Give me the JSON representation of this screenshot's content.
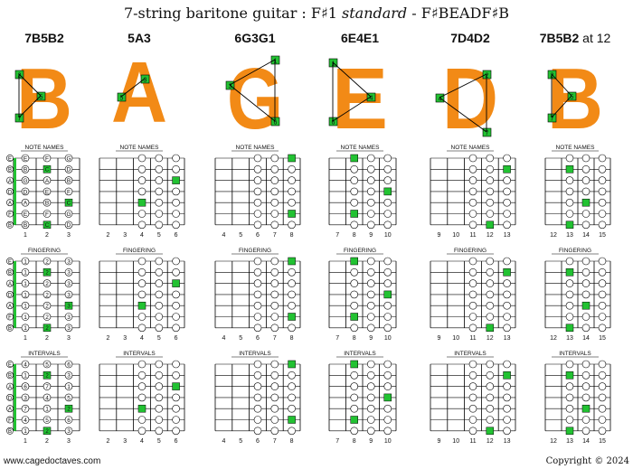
{
  "title": {
    "prefix": "7-string baritone guitar : F♯1 ",
    "italic": "standard",
    "suffix": " - F♯BEADF♯B"
  },
  "shapes": [
    {
      "label": "7B5B2",
      "label_suffix": "",
      "letter": "B",
      "fret_numbers": [
        "1",
        "2",
        "3"
      ]
    },
    {
      "label": "5A3",
      "label_suffix": "",
      "letter": "A",
      "fret_numbers": [
        "2",
        "3",
        "4",
        "5",
        "6"
      ]
    },
    {
      "label": "6G3G1",
      "label_suffix": "",
      "letter": "G",
      "fret_numbers": [
        "4",
        "5",
        "6",
        "7",
        "8"
      ]
    },
    {
      "label": "6E4E1",
      "label_suffix": "",
      "letter": "E",
      "fret_numbers": [
        "7",
        "8",
        "9",
        "10"
      ]
    },
    {
      "label": "7D4D2",
      "label_suffix": "",
      "letter": "D",
      "fret_numbers": [
        "9",
        "10",
        "11",
        "12",
        "13"
      ]
    },
    {
      "label": "7B5B2",
      "label_suffix": " at 12",
      "letter": "B",
      "fret_numbers": [
        "12",
        "13",
        "14",
        "15"
      ]
    }
  ],
  "shape_badges": [
    [
      {
        "t": "2"
      },
      {
        "t": "5"
      },
      {
        "t": "7"
      }
    ],
    [
      {
        "t": "3"
      },
      {
        "t": "5"
      }
    ],
    [
      {
        "t": "1"
      },
      {
        "t": "3"
      },
      {
        "t": "6"
      }
    ],
    [
      {
        "t": "1"
      },
      {
        "t": "4"
      },
      {
        "t": "6"
      }
    ],
    [
      {
        "t": "2"
      },
      {
        "t": "4"
      },
      {
        "t": "7"
      }
    ],
    [
      {
        "t": "2"
      },
      {
        "t": "5"
      },
      {
        "t": "7"
      }
    ]
  ],
  "section_titles": [
    "NOTE NAMES",
    "FINGERING",
    "INTERVALS"
  ],
  "string_names": [
    "E",
    "B",
    "A",
    "D",
    "A",
    "F",
    "B"
  ],
  "note_rows": [
    [
      "E",
      "F",
      "G"
    ],
    [
      "B",
      "C",
      "D"
    ],
    [
      "G",
      "A",
      "B"
    ],
    [
      "D",
      "E",
      "F"
    ],
    [
      "A",
      "B",
      "C"
    ],
    [
      "E",
      "F",
      "G"
    ],
    [
      "B",
      "C",
      "D"
    ]
  ],
  "finger_rows": [
    [
      "1",
      "2",
      "3"
    ],
    [
      "1",
      "2",
      "3"
    ],
    [
      "1",
      "2",
      "3"
    ],
    [
      "1",
      "2",
      "3"
    ],
    [
      "1",
      "2",
      "3"
    ],
    [
      "1",
      "2",
      "3"
    ],
    [
      "1",
      "2",
      "3"
    ]
  ],
  "interval_rows": [
    [
      "4",
      "5",
      "6"
    ],
    [
      "1",
      "2",
      "3"
    ],
    [
      "6",
      "7",
      "1"
    ],
    [
      "3",
      "4",
      "5"
    ],
    [
      "7",
      "1",
      "2"
    ],
    [
      "4",
      "5",
      "6"
    ],
    [
      "1",
      "2",
      "3"
    ]
  ],
  "colors": {
    "orange": "#f28a16",
    "green": "#22c232",
    "dark": "#111111"
  },
  "footer": {
    "left": "www.cagedoctaves.com",
    "right": "Copyright © 2024"
  }
}
